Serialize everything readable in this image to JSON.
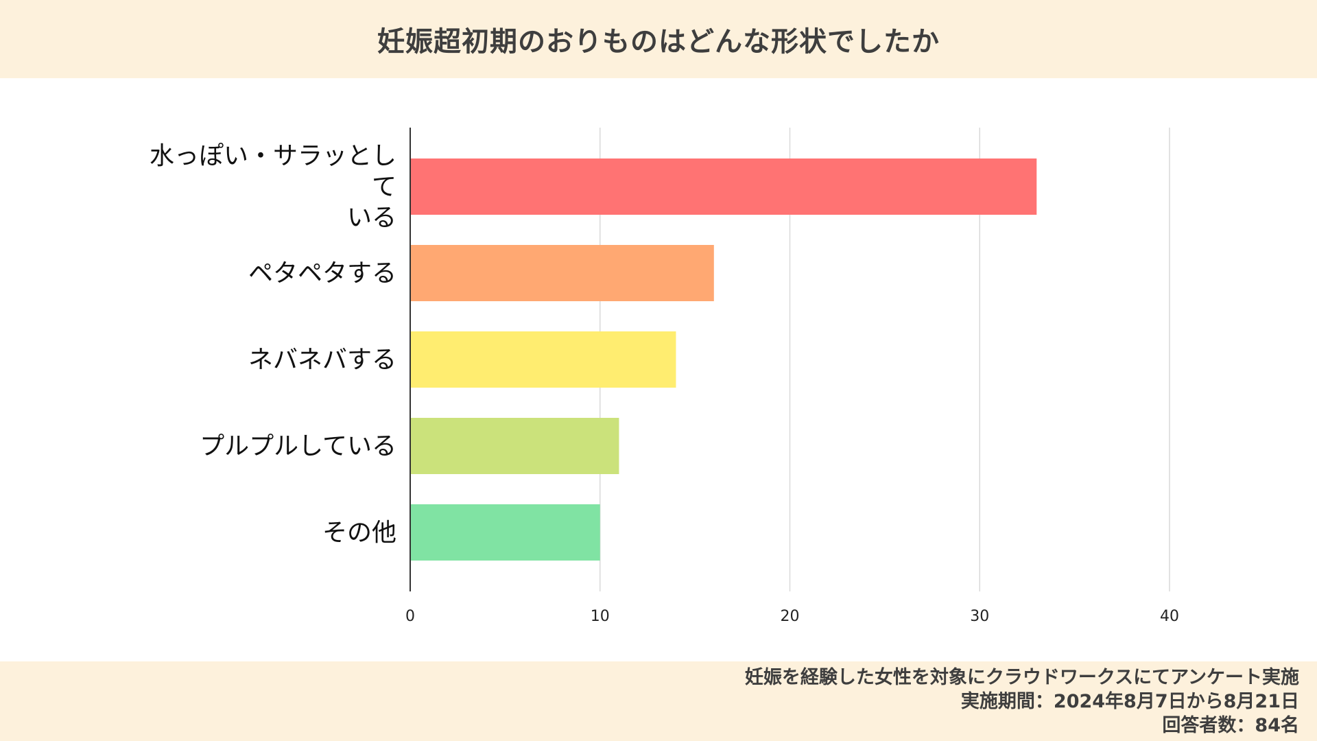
{
  "header": {
    "title": "妊娠超初期のおりものはどんな形状でしたか"
  },
  "chart_data": {
    "type": "bar",
    "orientation": "horizontal",
    "categories": [
      "水っぽい・サラッとしている",
      "ペタペタする",
      "ネバネバする",
      "プルプルしている",
      "その他"
    ],
    "category_lines": [
      [
        "水っぽい・サラッとして",
        "いる"
      ],
      [
        "ペタペタする"
      ],
      [
        "ネバネバする"
      ],
      [
        "プルプルしている"
      ],
      [
        "その他"
      ]
    ],
    "values": [
      33,
      16,
      14,
      11,
      10
    ],
    "colors": [
      "#ff7373",
      "#ffa872",
      "#ffed70",
      "#cbe27b",
      "#80e3a3"
    ],
    "xlim": [
      0,
      40
    ],
    "xticks": [
      "0",
      "10",
      "20",
      "30",
      "40"
    ],
    "grid": true,
    "title": "妊娠超初期のおりものはどんな形状でしたか",
    "xlabel": "",
    "ylabel": ""
  },
  "footer": {
    "lines": [
      "妊娠を経験した女性を対象にクラウドワークスにてアンケート実施",
      "実施期間：2024年8月7日から8月21日",
      "回答者数：84名"
    ]
  }
}
